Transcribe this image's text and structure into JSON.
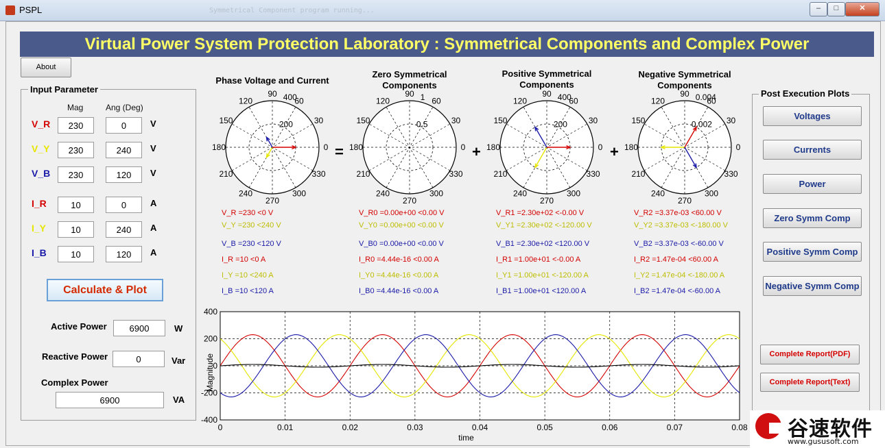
{
  "window": {
    "title": "PSPL",
    "background_text": "Symmetrical Component program running..."
  },
  "banner": {
    "title": "Virtual Power System Protection Laboratory : Symmetrical Components and Complex Power"
  },
  "about_button": "About",
  "input": {
    "title": "Input Parameter",
    "col_mag": "Mag",
    "col_ang": "Ang (Deg)",
    "rows": [
      {
        "label": "V_R",
        "mag": "230",
        "ang": "0",
        "unit": "V",
        "color": "#d40000"
      },
      {
        "label": "V_Y",
        "mag": "230",
        "ang": "240",
        "unit": "V",
        "color": "#e6e600"
      },
      {
        "label": "V_B",
        "mag": "230",
        "ang": "120",
        "unit": "V",
        "color": "#1a1aa8"
      },
      {
        "label": "I_R",
        "mag": "10",
        "ang": "0",
        "unit": "A",
        "color": "#d40000"
      },
      {
        "label": "I_Y",
        "mag": "10",
        "ang": "240",
        "unit": "A",
        "color": "#e6e600"
      },
      {
        "label": "I_B",
        "mag": "10",
        "ang": "120",
        "unit": "A",
        "color": "#1a1aa8"
      }
    ]
  },
  "calculate_button": "Calculate & Plot",
  "power": {
    "active_label": "Active Power",
    "active_value": "6900",
    "active_unit": "W",
    "reactive_label": "Reactive Power",
    "reactive_value": "0",
    "reactive_unit": "Var",
    "complex_label": "Complex Power",
    "complex_value": "6900",
    "complex_unit": "VA"
  },
  "polars": [
    {
      "title": "Phase Voltage and Current",
      "rticks": [
        "200",
        "400"
      ],
      "lines": [
        "V_R =230 <0 V",
        "V_Y =230 <240 V",
        "V_B =230 <120 V",
        "I_R =10 <0 A",
        "I_Y =10 <240 A",
        "I_B =10 <120 A"
      ]
    },
    {
      "title": "Zero Symmetrical Components",
      "rticks": [
        "0.5",
        "1"
      ],
      "lines": [
        "V_R0 =0.00e+00 <0.00 V",
        "V_Y0 =0.00e+00 <0.00 V",
        "V_B0 =0.00e+00 <0.00 V",
        "I_R0 =4.44e-16 <0.00 A",
        "I_Y0 =4.44e-16 <0.00 A",
        "I_B0 =4.44e-16 <0.00 A"
      ]
    },
    {
      "title": "Positive Symmetrical Components",
      "rticks": [
        "200",
        "400"
      ],
      "lines": [
        "V_R1 =2.30e+02 <-0.00 V",
        "V_Y1 =2.30e+02 <-120.00 V",
        "V_B1 =2.30e+02 <120.00 V",
        "I_R1 =1.00e+01 <-0.00 A",
        "I_Y1 =1.00e+01 <-120.00 A",
        "I_B1 =1.00e+01 <120.00 A"
      ]
    },
    {
      "title": "Negative Symmetrical Components",
      "rticks": [
        "0.002",
        "0.004"
      ],
      "lines": [
        "V_R2 =3.37e-03 <60.00 V",
        "V_Y2 =3.37e-03 <-180.00 V",
        "V_B2 =3.37e-03 <-60.00 V",
        "I_R2 =1.47e-04 <60.00 A",
        "I_Y2 =1.47e-04 <-180.00 A",
        "I_B2 =1.47e-04 <-60.00 A"
      ]
    }
  ],
  "polar_angle_labels": [
    "0",
    "30",
    "60",
    "90",
    "120",
    "150",
    "180",
    "210",
    "240",
    "270",
    "300",
    "330"
  ],
  "operators": [
    "=",
    "+",
    "+"
  ],
  "post": {
    "title": "Post Execution Plots",
    "buttons": [
      "Voltages",
      "Currents",
      "Power",
      "Zero Symm Comp",
      "Positive Symm Comp",
      "Negative Symm Comp"
    ],
    "report_buttons": [
      "Complete Report(PDF)",
      "Complete Report(Text)"
    ]
  },
  "chart_data": {
    "type": "line",
    "xlabel": "time",
    "ylabel": "Magnitude",
    "xlim": [
      0,
      0.08
    ],
    "ylim": [
      -400,
      400
    ],
    "xticks": [
      "0",
      "0.01",
      "0.02",
      "0.03",
      "0.04",
      "0.05",
      "0.06",
      "0.07",
      "0.08"
    ],
    "yticks": [
      "400",
      "200",
      "0",
      "-200",
      "-400"
    ],
    "grid": true,
    "frequency_hz": 50,
    "series": [
      {
        "color": "#d40000",
        "amplitude": 230,
        "phase_deg": 0
      },
      {
        "color": "#e6e600",
        "amplitude": 230,
        "phase_deg": 240
      },
      {
        "color": "#1a1aa8",
        "amplitude": 230,
        "phase_deg": 120
      },
      {
        "color": "#000000",
        "amplitude": 10,
        "phase_deg": 0
      }
    ]
  },
  "watermark": {
    "brand": "谷速软件",
    "url": "www.gususoft.com"
  }
}
